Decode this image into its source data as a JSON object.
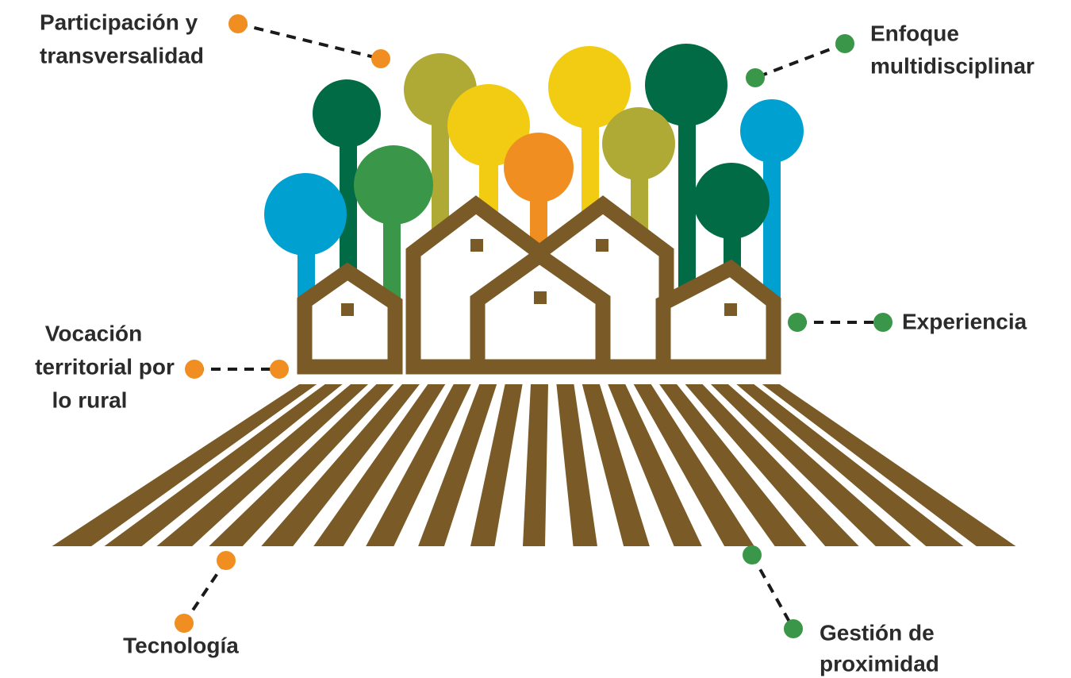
{
  "labels": [
    {
      "lines": [
        "Participación y",
        "transversalidad"
      ]
    },
    {
      "lines": [
        "Enfoque",
        "multidisciplinar"
      ]
    },
    {
      "lines": [
        "Experiencia"
      ]
    },
    {
      "lines": [
        "Vocación",
        "territorial por",
        "lo rural"
      ]
    },
    {
      "lines": [
        "Tecnología"
      ]
    },
    {
      "lines": [
        "Gestión de",
        "proximidad"
      ]
    }
  ]
}
